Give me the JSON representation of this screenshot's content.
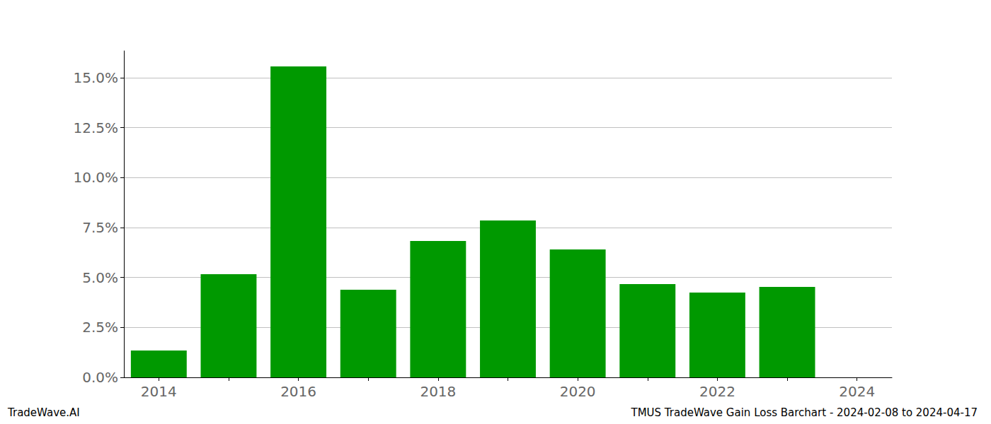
{
  "chart_data": {
    "type": "bar",
    "title": "TMUS TradeWave Gain Loss Barchart - 2024-02-08 to 2024-04-17",
    "annotations": [
      "TradeWave.AI"
    ],
    "categories": [
      "2014",
      null,
      "2016",
      null,
      "2018",
      null,
      "2020",
      null,
      "2022",
      null,
      "2024"
    ],
    "values": [
      1.34,
      5.16,
      15.56,
      4.39,
      6.83,
      7.85,
      6.4,
      4.67,
      4.24,
      4.53,
      null
    ],
    "color": "#009900",
    "ylim": [
      0,
      16.34
    ],
    "yticks": [
      {
        "value": 0,
        "label": "0.0%"
      },
      {
        "value": 2.5,
        "label": "2.5%"
      },
      {
        "value": 5,
        "label": "5.0%"
      },
      {
        "value": 7.5,
        "label": "7.5%"
      },
      {
        "value": 10,
        "label": "10.0%"
      },
      {
        "value": 12.5,
        "label": "12.5%"
      },
      {
        "value": 15,
        "label": "15.0%"
      }
    ],
    "grid": true
  }
}
